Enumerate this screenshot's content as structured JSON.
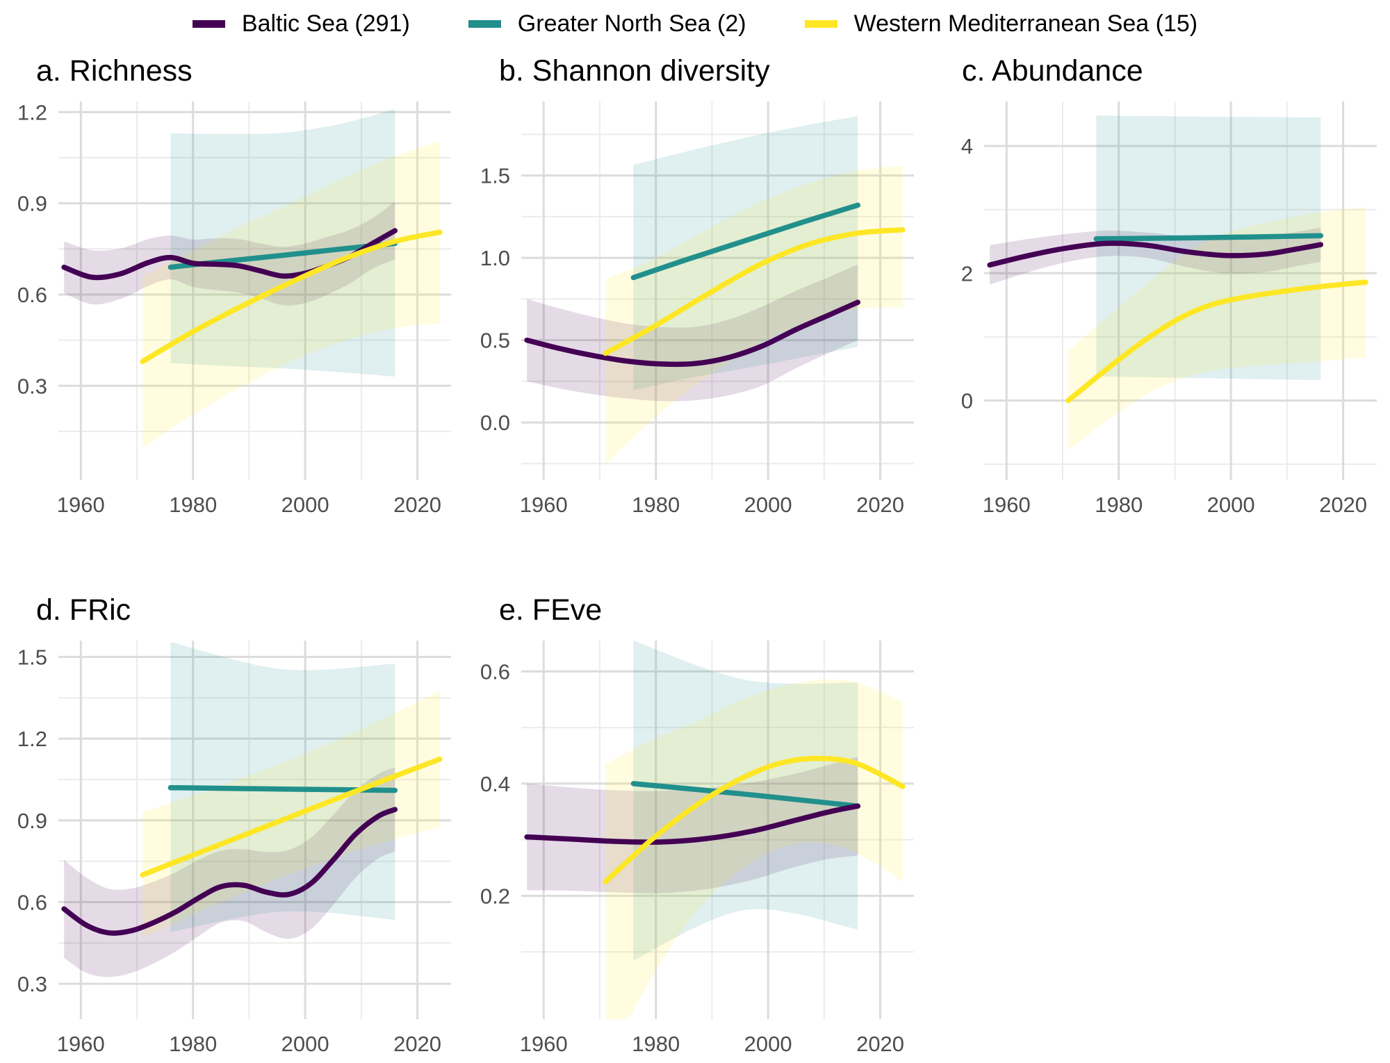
{
  "legend": {
    "items": [
      {
        "label": "Baltic Sea (291)",
        "color": "#440154"
      },
      {
        "label": "Greater North Sea (2)",
        "color": "#21908C"
      },
      {
        "label": "Western Mediterranean Sea (15)",
        "color": "#FDE725"
      }
    ]
  },
  "style": {
    "series_colors": {
      "baltic": "#440154",
      "north_sea": "#21908C",
      "west_med": "#FDE725"
    },
    "ribbon_opacity": 0.14,
    "tick_label_color": "#4d4d4d"
  },
  "chart_data": [
    {
      "id": "a",
      "title": "a. Richness",
      "type": "line",
      "xlabel": "",
      "ylabel": "",
      "xlim": [
        1956,
        2026
      ],
      "x_ticks": [
        1960,
        1980,
        2000,
        2020
      ],
      "x_minor": [
        1970,
        1990,
        2010
      ],
      "ylim": [
        -0.01,
        1.235
      ],
      "y_ticks": [
        0.3,
        0.6,
        0.9,
        1.2
      ],
      "y_minor": [
        0.15,
        0.45,
        0.75,
        1.05
      ],
      "y_decimals": 1,
      "grid": true,
      "series": [
        {
          "name": "Baltic Sea (291)",
          "key": "baltic",
          "color": "#440154",
          "x": [
            1957,
            1962,
            1967,
            1972,
            1976,
            1980,
            1984,
            1988,
            1992,
            1996,
            2000,
            2004,
            2008,
            2012,
            2016
          ],
          "y": [
            0.69,
            0.657,
            0.668,
            0.705,
            0.722,
            0.703,
            0.7,
            0.695,
            0.678,
            0.661,
            0.67,
            0.695,
            0.725,
            0.768,
            0.81
          ],
          "lower": [
            0.605,
            0.568,
            0.585,
            0.628,
            0.65,
            0.625,
            0.615,
            0.607,
            0.588,
            0.565,
            0.572,
            0.6,
            0.637,
            0.685,
            0.715
          ],
          "upper": [
            0.775,
            0.746,
            0.751,
            0.782,
            0.794,
            0.781,
            0.785,
            0.783,
            0.768,
            0.757,
            0.768,
            0.79,
            0.813,
            0.851,
            0.905
          ]
        },
        {
          "name": "Greater North Sea (2)",
          "key": "north_sea",
          "color": "#21908C",
          "x": [
            1976,
            1986,
            1996,
            2006,
            2016
          ],
          "y": [
            0.69,
            0.71,
            0.729,
            0.749,
            0.768
          ],
          "lower": [
            0.375,
            0.365,
            0.357,
            0.345,
            0.33
          ],
          "upper": [
            1.13,
            1.128,
            1.132,
            1.16,
            1.21
          ]
        },
        {
          "name": "Western Mediterranean Sea (15)",
          "key": "west_med",
          "color": "#FDE725",
          "x": [
            1971,
            1980,
            1989,
            1998,
            2007,
            2016,
            2024
          ],
          "y": [
            0.38,
            0.478,
            0.565,
            0.645,
            0.718,
            0.775,
            0.805
          ],
          "lower": [
            0.095,
            0.205,
            0.3,
            0.385,
            0.448,
            0.49,
            0.505
          ],
          "upper": [
            0.66,
            0.745,
            0.828,
            0.905,
            0.985,
            1.055,
            1.105
          ]
        }
      ]
    },
    {
      "id": "b",
      "title": "b. Shannon diversity",
      "type": "line",
      "xlabel": "",
      "ylabel": "",
      "xlim": [
        1956,
        2026
      ],
      "x_ticks": [
        1960,
        1980,
        2000,
        2020
      ],
      "x_minor": [
        1970,
        1990,
        2010
      ],
      "ylim": [
        -0.35,
        1.95
      ],
      "y_ticks": [
        0.0,
        0.5,
        1.0,
        1.5
      ],
      "y_minor": [
        -0.25,
        0.25,
        0.75,
        1.25,
        1.75
      ],
      "y_decimals": 1,
      "grid": true,
      "series": [
        {
          "name": "Baltic Sea (291)",
          "key": "baltic",
          "color": "#440154",
          "x": [
            1957,
            1963,
            1969,
            1975,
            1981,
            1987,
            1993,
            1999,
            2005,
            2011,
            2016
          ],
          "y": [
            0.5,
            0.448,
            0.405,
            0.372,
            0.355,
            0.358,
            0.395,
            0.465,
            0.565,
            0.655,
            0.73
          ],
          "lower": [
            0.25,
            0.205,
            0.17,
            0.145,
            0.13,
            0.135,
            0.165,
            0.225,
            0.33,
            0.425,
            0.5
          ],
          "upper": [
            0.75,
            0.691,
            0.64,
            0.599,
            0.58,
            0.581,
            0.625,
            0.705,
            0.8,
            0.885,
            0.96
          ]
        },
        {
          "name": "Greater North Sea (2)",
          "key": "north_sea",
          "color": "#21908C",
          "x": [
            1976,
            1986,
            1996,
            2006,
            2016
          ],
          "y": [
            0.88,
            0.995,
            1.105,
            1.215,
            1.32
          ],
          "lower": [
            0.195,
            0.27,
            0.33,
            0.395,
            0.46
          ],
          "upper": [
            1.565,
            1.65,
            1.73,
            1.8,
            1.86
          ]
        },
        {
          "name": "Western Mediterranean Sea (15)",
          "key": "west_med",
          "color": "#FDE725",
          "x": [
            1971,
            1980,
            1989,
            1998,
            2007,
            2016,
            2024
          ],
          "y": [
            0.42,
            0.59,
            0.775,
            0.95,
            1.08,
            1.15,
            1.17
          ],
          "lower": [
            -0.255,
            0.035,
            0.275,
            0.47,
            0.61,
            0.69,
            0.7
          ],
          "upper": [
            0.87,
            1.0,
            1.17,
            1.33,
            1.45,
            1.53,
            1.56
          ]
        }
      ]
    },
    {
      "id": "c",
      "title": "c. Abundance",
      "type": "line",
      "xlabel": "",
      "ylabel": "",
      "xlim": [
        1956,
        2026
      ],
      "x_ticks": [
        1960,
        1980,
        2000,
        2020
      ],
      "x_minor": [
        1970,
        1990,
        2010
      ],
      "ylim": [
        -1.25,
        4.7
      ],
      "y_ticks": [
        0,
        2,
        4
      ],
      "y_minor": [
        -1,
        1,
        3
      ],
      "y_decimals": 0,
      "grid": true,
      "series": [
        {
          "name": "Baltic Sea (291)",
          "key": "baltic",
          "color": "#440154",
          "x": [
            1957,
            1964,
            1971,
            1978,
            1985,
            1992,
            1999,
            2006,
            2011,
            2016
          ],
          "y": [
            2.13,
            2.28,
            2.4,
            2.47,
            2.44,
            2.34,
            2.28,
            2.3,
            2.37,
            2.45
          ],
          "lower": [
            1.82,
            2.02,
            2.18,
            2.27,
            2.24,
            2.1,
            2.0,
            2.02,
            2.1,
            2.18
          ],
          "upper": [
            2.44,
            2.54,
            2.62,
            2.67,
            2.64,
            2.58,
            2.56,
            2.58,
            2.64,
            2.72
          ]
        },
        {
          "name": "Greater North Sea (2)",
          "key": "north_sea",
          "color": "#21908C",
          "x": [
            1976,
            1996,
            2016
          ],
          "y": [
            2.54,
            2.56,
            2.59
          ],
          "lower": [
            0.38,
            0.35,
            0.32
          ],
          "upper": [
            4.48,
            4.46,
            4.45
          ]
        },
        {
          "name": "Western Mediterranean Sea (15)",
          "key": "west_med",
          "color": "#FDE725",
          "x": [
            1971,
            1976,
            1981,
            1986,
            1991,
            1996,
            2001,
            2008,
            2016,
            2024
          ],
          "y": [
            0.0,
            0.36,
            0.71,
            1.03,
            1.3,
            1.49,
            1.6,
            1.7,
            1.79,
            1.86
          ],
          "lower": [
            -0.78,
            -0.44,
            -0.12,
            0.15,
            0.34,
            0.46,
            0.52,
            0.57,
            0.62,
            0.68
          ],
          "upper": [
            0.78,
            1.16,
            1.54,
            1.91,
            2.26,
            2.52,
            2.68,
            2.83,
            2.96,
            3.04
          ]
        }
      ]
    },
    {
      "id": "d",
      "title": "d. FRic",
      "type": "line",
      "xlabel": "",
      "ylabel": "",
      "xlim": [
        1956,
        2026
      ],
      "x_ticks": [
        1960,
        1980,
        2000,
        2020
      ],
      "x_minor": [
        1970,
        1990,
        2010
      ],
      "ylim": [
        0.17,
        1.56
      ],
      "y_ticks": [
        0.3,
        0.6,
        0.9,
        1.2,
        1.5
      ],
      "y_minor": [
        0.45,
        0.75,
        1.05,
        1.35
      ],
      "y_decimals": 1,
      "grid": true,
      "series": [
        {
          "name": "Baltic Sea (291)",
          "key": "baltic",
          "color": "#440154",
          "x": [
            1957,
            1961,
            1965,
            1969,
            1973,
            1977,
            1981,
            1985,
            1989,
            1993,
            1997,
            2001,
            2005,
            2009,
            2013,
            2016
          ],
          "y": [
            0.575,
            0.515,
            0.487,
            0.495,
            0.525,
            0.565,
            0.615,
            0.657,
            0.662,
            0.637,
            0.628,
            0.668,
            0.755,
            0.85,
            0.915,
            0.94
          ],
          "lower": [
            0.395,
            0.34,
            0.325,
            0.34,
            0.375,
            0.42,
            0.475,
            0.525,
            0.53,
            0.49,
            0.465,
            0.5,
            0.59,
            0.69,
            0.76,
            0.785
          ],
          "upper": [
            0.755,
            0.69,
            0.649,
            0.65,
            0.675,
            0.71,
            0.755,
            0.789,
            0.794,
            0.784,
            0.791,
            0.836,
            0.92,
            1.01,
            1.07,
            1.095
          ]
        },
        {
          "name": "Greater North Sea (2)",
          "key": "north_sea",
          "color": "#21908C",
          "x": [
            1976,
            1996,
            2016
          ],
          "y": [
            1.02,
            1.015,
            1.01
          ],
          "lower": [
            0.49,
            0.565,
            0.535
          ],
          "upper": [
            1.555,
            1.455,
            1.475
          ]
        },
        {
          "name": "Western Mediterranean Sea (15)",
          "key": "west_med",
          "color": "#FDE725",
          "x": [
            1971,
            1984,
            1997,
            2010,
            2024
          ],
          "y": [
            0.7,
            0.805,
            0.91,
            1.015,
            1.125
          ],
          "lower": [
            0.47,
            0.59,
            0.7,
            0.795,
            0.875
          ],
          "upper": [
            0.93,
            1.02,
            1.12,
            1.235,
            1.375
          ]
        }
      ]
    },
    {
      "id": "e",
      "title": "e. FEve",
      "type": "line",
      "xlabel": "",
      "ylabel": "",
      "xlim": [
        1956,
        2026
      ],
      "x_ticks": [
        1960,
        1980,
        2000,
        2020
      ],
      "x_minor": [
        1970,
        1990,
        2010
      ],
      "ylim": [
        -0.02,
        0.655
      ],
      "y_ticks": [
        0.2,
        0.4,
        0.6
      ],
      "y_minor": [
        0.1,
        0.3,
        0.5
      ],
      "y_decimals": 1,
      "grid": true,
      "series": [
        {
          "name": "Baltic Sea (291)",
          "key": "baltic",
          "color": "#440154",
          "x": [
            1957,
            1965,
            1973,
            1981,
            1989,
            1997,
            2005,
            2011,
            2016
          ],
          "y": [
            0.305,
            0.301,
            0.297,
            0.296,
            0.302,
            0.315,
            0.335,
            0.35,
            0.36
          ],
          "lower": [
            0.21,
            0.209,
            0.206,
            0.205,
            0.212,
            0.228,
            0.252,
            0.266,
            0.272
          ],
          "upper": [
            0.4,
            0.393,
            0.388,
            0.387,
            0.392,
            0.402,
            0.418,
            0.434,
            0.448
          ]
        },
        {
          "name": "Greater North Sea (2)",
          "key": "north_sea",
          "color": "#21908C",
          "x": [
            1976,
            1996,
            2016
          ],
          "y": [
            0.4,
            0.381,
            0.36
          ],
          "lower": [
            0.085,
            0.175,
            0.14
          ],
          "upper": [
            0.655,
            0.585,
            0.58
          ]
        },
        {
          "name": "Western Mediterranean Sea (15)",
          "key": "west_med",
          "color": "#FDE725",
          "x": [
            1971,
            1979,
            1987,
            1995,
            2002,
            2009,
            2016,
            2024
          ],
          "y": [
            0.225,
            0.298,
            0.36,
            0.408,
            0.436,
            0.445,
            0.435,
            0.395
          ],
          "lower": [
            -0.1,
            0.05,
            0.17,
            0.245,
            0.285,
            0.295,
            0.275,
            0.225
          ],
          "upper": [
            0.435,
            0.476,
            0.51,
            0.548,
            0.572,
            0.585,
            0.58,
            0.545
          ]
        }
      ]
    }
  ]
}
